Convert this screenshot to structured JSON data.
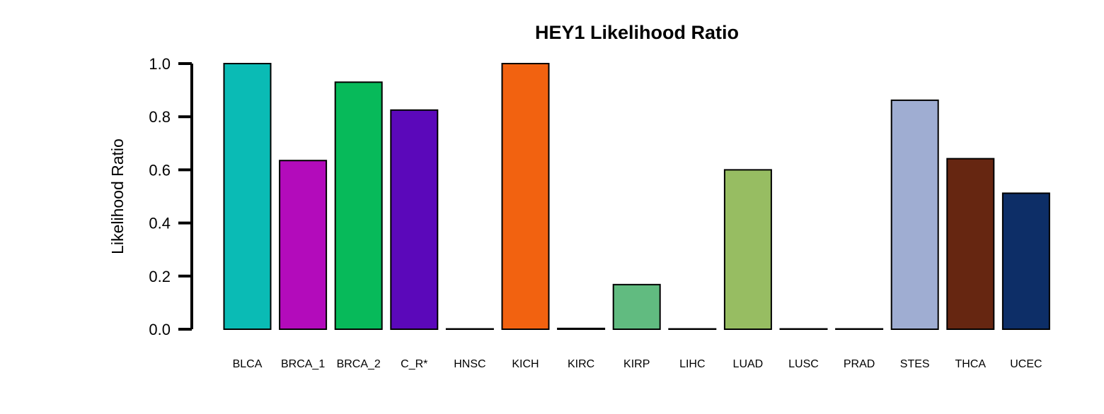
{
  "chart_data": {
    "type": "bar",
    "title": "HEY1 Likelihood Ratio",
    "xlabel": "",
    "ylabel": "Likelihood Ratio",
    "ylim": [
      0,
      1
    ],
    "yticks": [
      "0.0",
      "0.2",
      "0.4",
      "0.6",
      "0.8",
      "1.0"
    ],
    "grid": false,
    "legend": "none",
    "categories": [
      "BLCA",
      "BRCA_1",
      "BRCA_2",
      "C_R*",
      "HNSC",
      "KICH",
      "KIRC",
      "KIRP",
      "LIHC",
      "LUAD",
      "LUSC",
      "PRAD",
      "STES",
      "THCA",
      "UCEC"
    ],
    "values": [
      1.0,
      0.635,
      0.93,
      0.825,
      0.0,
      1.0,
      0.003,
      0.168,
      0.0,
      0.6,
      0.0,
      0.0,
      0.862,
      0.642,
      0.512
    ],
    "colors": [
      "#0ABBB5",
      "#B30BBB",
      "#07BA5A",
      "#5B08BA",
      "#333333",
      "#F26210",
      "#333333",
      "#61BB80",
      "#333333",
      "#97BD62",
      "#333333",
      "#333333",
      "#9FADD2",
      "#662611",
      "#0D2E67"
    ]
  }
}
